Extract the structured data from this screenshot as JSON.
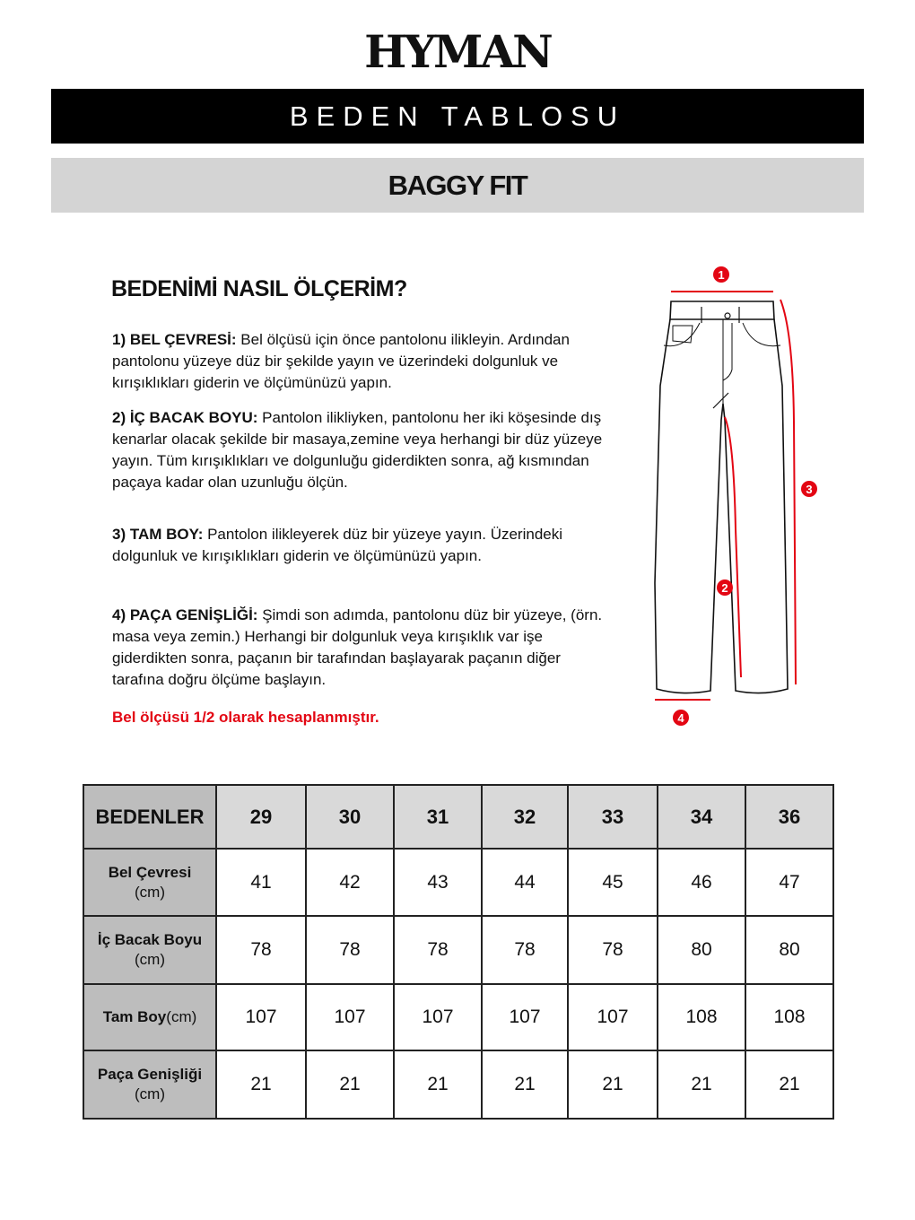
{
  "brand": {
    "logo_text": "HYMAN"
  },
  "banner": {
    "title": "BEDEN TABLOSU"
  },
  "subbanner": {
    "fit": "BAGGY FIT"
  },
  "howto": {
    "title": "BEDENİMİ NASIL ÖLÇERİM?",
    "steps": [
      {
        "label": "1) BEL ÇEVRESİ:",
        "text": " Bel ölçüsü için önce pantolonu ilikleyin. Ardından pantolonu yüzeye düz bir şekilde yayın ve üzerindeki dolgunluk ve kırışıklıkları giderin ve ölçümünüzü yapın."
      },
      {
        "label": "2) İÇ BACAK BOYU:",
        "text": " Pantolon ilikliyken, pantolonu her iki köşesinde dış kenarlar olacak şekilde bir masaya,zemine veya herhangi bir düz yüzeye yayın. Tüm kırışıklıkları ve dolgunluğu giderdikten sonra, ağ kısmından paçaya kadar olan uzunluğu ölçün."
      },
      {
        "label": "3) TAM BOY:",
        "text": " Pantolon ilikleyerek düz bir yüzeye yayın. Üzerindeki dolgunluk ve kırışıklıkları giderin ve ölçümünüzü yapın."
      },
      {
        "label": "4) PAÇA GENİŞLİĞİ:",
        "text": " Şimdi son adımda, pantolonu düz bir yüzeye, (örn. masa veya zemin.) Herhangi bir dolgunluk veya kırışıklık var işe giderdikten sonra, paçanın bir tarafından başlayarak paçanın diğer tarafına doğru ölçüme başlayın."
      }
    ],
    "note": "Bel ölçüsü 1/2 olarak hesaplanmıştır."
  },
  "diagram": {
    "markers": [
      "1",
      "2",
      "3",
      "4"
    ],
    "accent_color": "#e30613"
  },
  "size_table": {
    "header_label": "BEDENLER",
    "sizes": [
      "29",
      "30",
      "31",
      "32",
      "33",
      "34",
      "36"
    ],
    "rows": [
      {
        "name": "Bel Çevresi",
        "unit": "(cm)",
        "values": [
          "41",
          "42",
          "43",
          "44",
          "45",
          "46",
          "47"
        ]
      },
      {
        "name": "İç Bacak Boyu",
        "unit": "(cm)",
        "values": [
          "78",
          "78",
          "78",
          "78",
          "78",
          "80",
          "80"
        ]
      },
      {
        "name": "Tam Boy",
        "unit": "(cm)",
        "values": [
          "107",
          "107",
          "107",
          "107",
          "107",
          "108",
          "108"
        ]
      },
      {
        "name": "Paça Genişliği",
        "unit": "(cm)",
        "values": [
          "21",
          "21",
          "21",
          "21",
          "21",
          "21",
          "21"
        ]
      }
    ]
  }
}
